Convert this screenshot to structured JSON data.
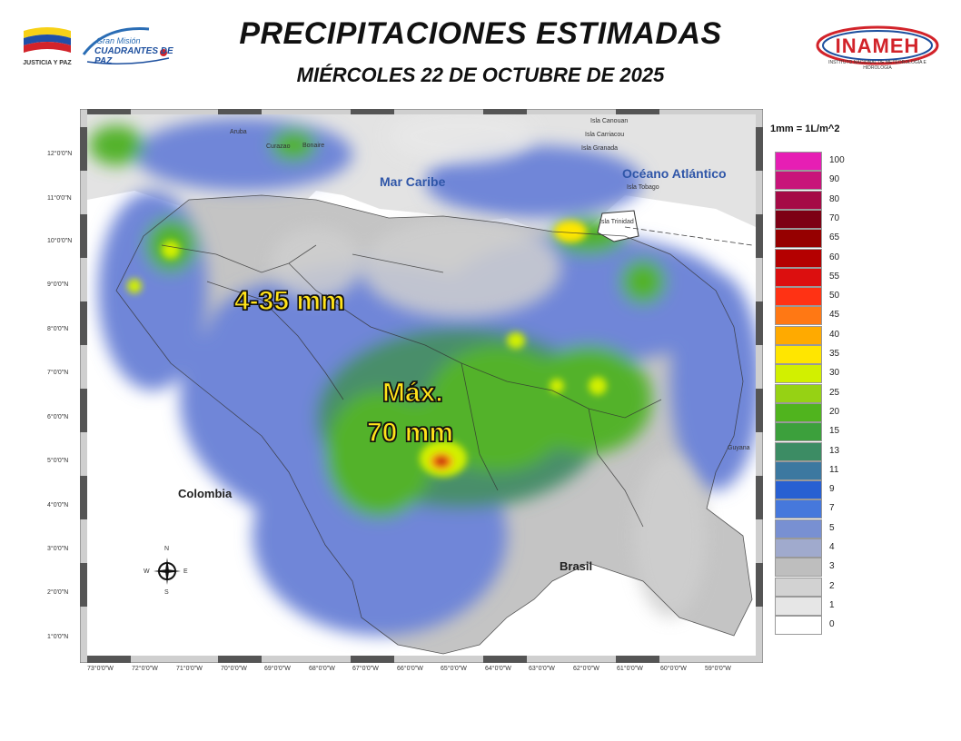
{
  "header": {
    "title": "PRECIPITACIONES ESTIMADAS",
    "subtitle": "MIÉRCOLES 22 DE OCTUBRE DE 2025"
  },
  "logos": {
    "left_caption": "JUSTICIA Y PAZ",
    "mision_line1": "Gran Misión",
    "mision_line2": "CUADRANTES DE PAZ",
    "inameh": "INAMEH",
    "inameh_sub": "INSTITUTO NACIONAL DE METEOROLOGÍA E HIDROLOGÍA"
  },
  "map": {
    "annotations": {
      "range": "4-35 mm",
      "max_line1": "Máx.",
      "max_line2": "70 mm"
    },
    "labels": {
      "mar_caribe": "Mar Caribe",
      "oceano": "Océano Atlántico",
      "colombia": "Colombia",
      "brasil": "Brasil",
      "guyana": "Guyana",
      "aruba": "Aruba",
      "curazao": "Curazao",
      "bonaire": "Bonaire",
      "canouan": "Isla Canouan",
      "carriacou": "Isla Carriacou",
      "granada": "Isla Granada",
      "tobago": "Isla Tobago",
      "trinidad": "Isla Trinidad"
    },
    "compass": {
      "n": "N",
      "s": "S",
      "e": "E",
      "w": "W"
    },
    "lat_ticks": [
      "12°0'0\"N",
      "11°0'0\"N",
      "10°0'0\"N",
      "9°0'0\"N",
      "8°0'0\"N",
      "7°0'0\"N",
      "6°0'0\"N",
      "5°0'0\"N",
      "4°0'0\"N",
      "3°0'0\"N",
      "2°0'0\"N",
      "1°0'0\"N"
    ],
    "lon_ticks": [
      "73°0'0\"W",
      "72°0'0\"W",
      "71°0'0\"W",
      "70°0'0\"W",
      "69°0'0\"W",
      "68°0'0\"W",
      "67°0'0\"W",
      "66°0'0\"W",
      "65°0'0\"W",
      "64°0'0\"W",
      "63°0'0\"W",
      "62°0'0\"W",
      "61°0'0\"W",
      "60°0'0\"W",
      "59°0'0\"W"
    ]
  },
  "legend": {
    "unit": "1mm = 1L/m^2",
    "items": [
      {
        "label": "100",
        "color": "#e61eb4"
      },
      {
        "label": "90",
        "color": "#c8147a"
      },
      {
        "label": "80",
        "color": "#a50a46"
      },
      {
        "label": "70",
        "color": "#7d0014"
      },
      {
        "label": "65",
        "color": "#960000"
      },
      {
        "label": "60",
        "color": "#b40000"
      },
      {
        "label": "55",
        "color": "#dc0f0f"
      },
      {
        "label": "50",
        "color": "#ff3214"
      },
      {
        "label": "45",
        "color": "#ff7814"
      },
      {
        "label": "40",
        "color": "#ffaa00"
      },
      {
        "label": "35",
        "color": "#ffe600"
      },
      {
        "label": "30",
        "color": "#d2f000"
      },
      {
        "label": "25",
        "color": "#96d214"
      },
      {
        "label": "20",
        "color": "#50b41e"
      },
      {
        "label": "15",
        "color": "#3ca03c"
      },
      {
        "label": "13",
        "color": "#3c8c64"
      },
      {
        "label": "11",
        "color": "#3c78a0"
      },
      {
        "label": "9",
        "color": "#2860d2"
      },
      {
        "label": "7",
        "color": "#4678dc"
      },
      {
        "label": "5",
        "color": "#7890d2"
      },
      {
        "label": "4",
        "color": "#a0aacd"
      },
      {
        "label": "3",
        "color": "#bebebe"
      },
      {
        "label": "2",
        "color": "#d2d2d2"
      },
      {
        "label": "1",
        "color": "#e6e6e6"
      },
      {
        "label": "0",
        "color": "#ffffff"
      }
    ]
  }
}
